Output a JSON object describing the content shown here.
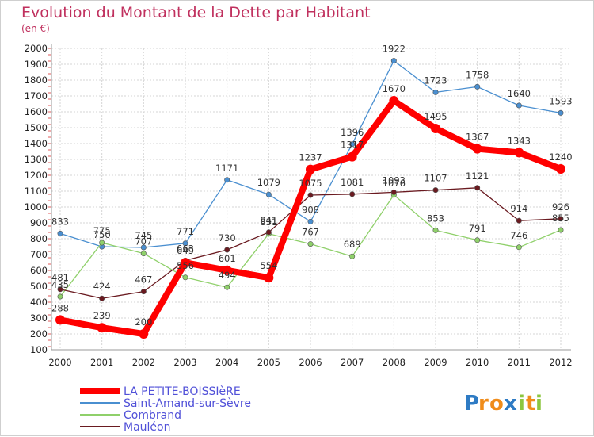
{
  "title": "Evolution du Montant de la Dette par Habitant",
  "unit": "(en €)",
  "chart_data": {
    "type": "line",
    "x": [
      "2000",
      "2001",
      "2002",
      "2003",
      "2004",
      "2005",
      "2006",
      "2007",
      "2008",
      "2009",
      "2010",
      "2011",
      "2012"
    ],
    "ylim": [
      100,
      2000
    ],
    "yticks": [
      100,
      200,
      300,
      400,
      500,
      600,
      700,
      800,
      900,
      1000,
      1100,
      1200,
      1300,
      1400,
      1500,
      1600,
      1700,
      1800,
      1900,
      2000
    ],
    "grid": true,
    "legend_position": "bottom-left",
    "series": [
      {
        "name": "LA PETITE-BOISSIèRE",
        "color": "#ff0000",
        "values": [
          288,
          239,
          200,
          649,
          601,
          554,
          1237,
          1317,
          1670,
          1495,
          1367,
          1343,
          1240
        ],
        "labels": [
          "288",
          "239",
          "200",
          "649",
          "601",
          "554",
          "1237",
          "1317",
          "1670",
          "1495",
          "1367",
          "1343",
          "1240"
        ]
      },
      {
        "name": "Saint-Amand-sur-Sèvre",
        "color": "#4a8fd0",
        "values": [
          833,
          750,
          745,
          771,
          1171,
          1079,
          908,
          1396,
          1922,
          1723,
          1758,
          1640,
          1593
        ],
        "labels": [
          "833",
          "750",
          "745",
          "771",
          "1171",
          "1079",
          "908",
          "1396",
          "1922",
          "1723",
          "1758",
          "1640",
          "1593"
        ]
      },
      {
        "name": "Combrand",
        "color": "#8fd06a",
        "values": [
          435,
          775,
          707,
          556,
          494,
          831,
          767,
          689,
          1076,
          853,
          791,
          746,
          855
        ],
        "labels": [
          "435",
          "775",
          "707",
          "556",
          "494",
          "831",
          "767",
          "689",
          "1076",
          "853",
          "791",
          "746",
          "855"
        ]
      },
      {
        "name": "Mauléon",
        "color": "#6a1a20",
        "values": [
          481,
          424,
          467,
          663,
          730,
          841,
          1075,
          1081,
          1093,
          1107,
          1121,
          914,
          926
        ],
        "labels": [
          "481",
          "424",
          "467",
          "663",
          "730",
          "841",
          "1075",
          "1081",
          "1093",
          "1107",
          "1121",
          "914",
          "926"
        ]
      }
    ]
  },
  "logo": {
    "letters": [
      "P",
      "r",
      "o",
      "x",
      "i",
      "t",
      "i"
    ],
    "colors": [
      "#2e7bc4",
      "#f08c1a",
      "#f08c1a",
      "#2e7bc4",
      "#8cc63f",
      "#f08c1a",
      "#8cc63f"
    ]
  }
}
